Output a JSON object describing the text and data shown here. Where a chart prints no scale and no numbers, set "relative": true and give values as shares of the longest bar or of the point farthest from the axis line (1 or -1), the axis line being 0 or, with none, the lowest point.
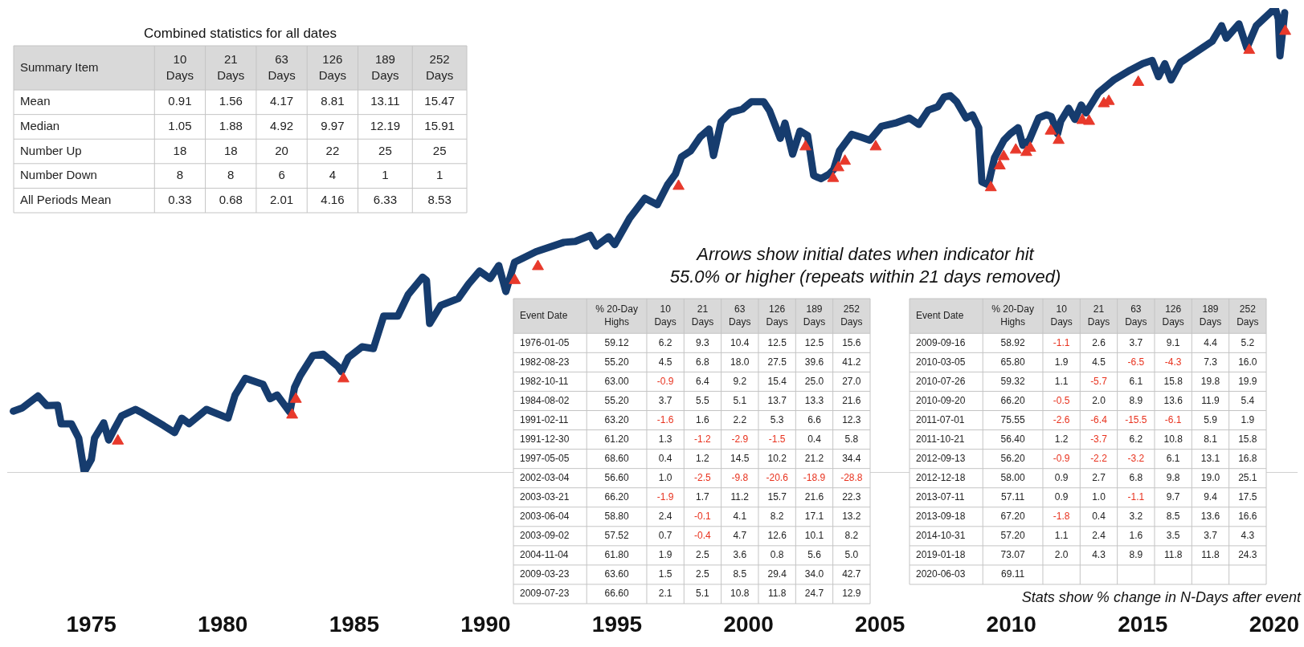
{
  "chart_data": [
    {
      "type": "line",
      "relative": true,
      "xlim": [
        1971.8,
        2020.86
      ],
      "xticks": [
        1975,
        1980,
        1985,
        1990,
        1995,
        2000,
        2005,
        2010,
        2015,
        2020
      ],
      "grid": false,
      "legend": false,
      "annotations": [
        "Arrows show initial dates when indicator hit 55.0% or higher (repeats within 21 days removed)",
        "Stats show % change in N-Days after event"
      ],
      "series": [
        {
          "type": "line",
          "color": "#163c6e",
          "marker": "none",
          "line_style": "solid",
          "x": [
            1972.03,
            1972.37,
            1972.97,
            1973.31,
            1973.72,
            1973.85,
            1974.24,
            1974.52,
            1974.73,
            1975.0,
            1975.12,
            1975.47,
            1975.66,
            1975.88,
            1976.15,
            1976.68,
            1976.95,
            1977.75,
            1978.17,
            1978.44,
            1978.72,
            1979.38,
            1980.2,
            1980.47,
            1980.86,
            1981.53,
            1981.8,
            1982.07,
            1982.55,
            1982.73,
            1982.95,
            1983.43,
            1983.82,
            1984.37,
            1984.52,
            1984.78,
            1985.3,
            1985.73,
            1986.12,
            1986.66,
            1987.05,
            1987.6,
            1987.75,
            1987.87,
            1988.29,
            1988.96,
            1989.35,
            1989.77,
            1990.17,
            1990.5,
            1990.77,
            1991.1,
            1991.92,
            1992.98,
            1993.41,
            1993.98,
            1994.21,
            1994.68,
            1994.91,
            1995.48,
            1996.06,
            1996.53,
            1996.92,
            1997.22,
            1997.45,
            1997.8,
            1998.16,
            1998.5,
            1998.67,
            1998.96,
            1999.31,
            1999.77,
            2000.11,
            2000.58,
            2000.8,
            2001.21,
            2001.39,
            2001.68,
            2001.96,
            2002.25,
            2002.48,
            2002.76,
            2003.07,
            2003.24,
            2003.46,
            2003.93,
            2004.27,
            2004.62,
            2005.06,
            2005.64,
            2006.12,
            2006.48,
            2006.84,
            2007.2,
            2007.44,
            2007.68,
            2007.92,
            2008.28,
            2008.52,
            2008.76,
            2008.88,
            2009.12,
            2009.36,
            2009.72,
            2009.96,
            2010.26,
            2010.44,
            2010.68,
            2011.04,
            2011.34,
            2011.52,
            2011.76,
            2011.88,
            2012.18,
            2012.42,
            2012.66,
            2012.84,
            2013.32,
            2013.92,
            2014.52,
            2015.0,
            2015.36,
            2015.6,
            2015.84,
            2016.08,
            2016.44,
            2016.92,
            2017.64,
            2018.0,
            2018.18,
            2018.66,
            2018.96,
            2019.32,
            2020.04,
            2020.16,
            2020.22,
            2020.4
          ],
          "values": [
            0.131,
            0.138,
            0.164,
            0.143,
            0.144,
            0.104,
            0.104,
            0.073,
            0,
            0.027,
            0.073,
            0.106,
            0.069,
            0.093,
            0.121,
            0.135,
            0.127,
            0.1,
            0.085,
            0.116,
            0.104,
            0.135,
            0.116,
            0.166,
            0.202,
            0.189,
            0.158,
            0.166,
            0.129,
            0.182,
            0.208,
            0.251,
            0.254,
            0.228,
            0.216,
            0.247,
            0.27,
            0.266,
            0.336,
            0.336,
            0.382,
            0.42,
            0.413,
            0.32,
            0.359,
            0.374,
            0.405,
            0.433,
            0.417,
            0.445,
            0.389,
            0.452,
            0.475,
            0.495,
            0.497,
            0.51,
            0.487,
            0.507,
            0.49,
            0.547,
            0.59,
            0.576,
            0.619,
            0.642,
            0.679,
            0.692,
            0.722,
            0.739,
            0.682,
            0.755,
            0.775,
            0.782,
            0.798,
            0.798,
            0.779,
            0.719,
            0.752,
            0.685,
            0.735,
            0.725,
            0.639,
            0.632,
            0.642,
            0.652,
            0.692,
            0.728,
            0.722,
            0.715,
            0.745,
            0.753,
            0.763,
            0.749,
            0.78,
            0.787,
            0.808,
            0.811,
            0.798,
            0.763,
            0.77,
            0.742,
            0.625,
            0.619,
            0.677,
            0.715,
            0.729,
            0.742,
            0.704,
            0.715,
            0.763,
            0.77,
            0.766,
            0.729,
            0.756,
            0.784,
            0.76,
            0.791,
            0.774,
            0.818,
            0.846,
            0.866,
            0.88,
            0.887,
            0.852,
            0.88,
            0.845,
            0.883,
            0.901,
            0.928,
            0.962,
            0.935,
            0.966,
            0.914,
            0.962,
            1.0,
            0.976,
            0.897,
            0.99
          ]
        },
        {
          "type": "scatter",
          "color": "#e8392b",
          "marker": "triangle",
          "x": [
            1976.01,
            1982.64,
            1982.78,
            1984.59,
            1991.11,
            1991.99,
            1997.34,
            2002.17,
            2003.22,
            2003.42,
            2003.67,
            2004.84,
            2009.22,
            2009.56,
            2009.71,
            2010.17,
            2010.57,
            2010.72,
            2011.5,
            2011.8,
            2012.7,
            2012.96,
            2013.52,
            2013.71,
            2014.83,
            2019.05,
            2020.42
          ],
          "values": [
            0.067,
            0.123,
            0.157,
            0.201,
            0.413,
            0.443,
            0.616,
            0.701,
            0.633,
            0.656,
            0.67,
            0.701,
            0.613,
            0.66,
            0.68,
            0.694,
            0.689,
            0.698,
            0.735,
            0.715,
            0.758,
            0.756,
            0.794,
            0.799,
            0.84,
            0.909,
            0.95
          ]
        }
      ]
    },
    {
      "type": "heatmap",
      "title": "Combined statistics for all dates",
      "ylabel": "Summary Item",
      "color": "#ffffff",
      "categories": [
        "10 Days",
        "21 Days",
        "63 Days",
        "126 Days",
        "189 Days",
        "252 Days"
      ],
      "y_categories": [
        "Mean",
        "Median",
        "Number Up",
        "Number Down",
        "All Periods Mean"
      ],
      "cells": [
        [
          0.91,
          1.56,
          4.17,
          8.81,
          13.11,
          15.47
        ],
        [
          1.05,
          1.88,
          4.92,
          9.97,
          12.19,
          15.91
        ],
        [
          18,
          18,
          20,
          22,
          25,
          25
        ],
        [
          8,
          8,
          6,
          4,
          1,
          1
        ],
        [
          0.33,
          0.68,
          2.01,
          4.16,
          6.33,
          8.53
        ]
      ],
      "cell_labels": [
        [
          "0.91",
          "1.56",
          "4.17",
          "8.81",
          "13.11",
          "15.47"
        ],
        [
          "1.05",
          "1.88",
          "4.92",
          "9.97",
          "12.19",
          "15.91"
        ],
        [
          "18",
          "18",
          "20",
          "22",
          "25",
          "25"
        ],
        [
          "8",
          "8",
          "6",
          "4",
          "1",
          "1"
        ],
        [
          "0.33",
          "0.68",
          "2.01",
          "4.16",
          "6.33",
          "8.53"
        ]
      ]
    },
    {
      "type": "heatmap",
      "ylabel": "Event Date",
      "color": "#ffffff",
      "categories": [
        "% 20-Day Highs",
        "10 Days",
        "21 Days",
        "63 Days",
        "126 Days",
        "189 Days",
        "252 Days"
      ],
      "y_categories": [
        "1976-01-05",
        "1982-08-23",
        "1982-10-11",
        "1984-08-02",
        "1991-02-11",
        "1991-12-30",
        "1997-05-05",
        "2002-03-04",
        "2003-03-21",
        "2003-06-04",
        "2003-09-02",
        "2004-11-04",
        "2009-03-23",
        "2009-07-23"
      ],
      "cells": [
        [
          59.12,
          6.2,
          9.3,
          10.4,
          12.5,
          12.5,
          15.6
        ],
        [
          55.2,
          4.5,
          6.8,
          18.0,
          27.5,
          39.6,
          41.2
        ],
        [
          63.0,
          -0.9,
          6.4,
          9.2,
          15.4,
          25.0,
          27.0
        ],
        [
          55.2,
          3.7,
          5.5,
          5.1,
          13.7,
          13.3,
          21.6
        ],
        [
          63.2,
          -1.6,
          1.6,
          2.2,
          5.3,
          6.6,
          12.3
        ],
        [
          61.2,
          1.3,
          -1.2,
          -2.9,
          -1.5,
          0.4,
          5.8
        ],
        [
          68.6,
          0.4,
          1.2,
          14.5,
          10.2,
          21.2,
          34.4
        ],
        [
          56.6,
          1.0,
          -2.5,
          -9.8,
          -20.6,
          -18.9,
          -28.8
        ],
        [
          66.2,
          -1.9,
          1.7,
          11.2,
          15.7,
          21.6,
          22.3
        ],
        [
          58.8,
          2.4,
          -0.1,
          4.1,
          8.2,
          17.1,
          13.2
        ],
        [
          57.52,
          0.7,
          -0.4,
          4.7,
          12.6,
          10.1,
          8.2
        ],
        [
          61.8,
          1.9,
          2.5,
          3.6,
          0.8,
          5.6,
          5.0
        ],
        [
          63.6,
          1.5,
          2.5,
          8.5,
          29.4,
          34.0,
          42.7
        ],
        [
          66.6,
          2.1,
          5.1,
          10.8,
          11.8,
          24.7,
          12.9
        ]
      ],
      "cell_labels": [
        [
          "59.12",
          "6.2",
          "9.3",
          "10.4",
          "12.5",
          "12.5",
          "15.6"
        ],
        [
          "55.20",
          "4.5",
          "6.8",
          "18.0",
          "27.5",
          "39.6",
          "41.2"
        ],
        [
          "63.00",
          "-0.9",
          "6.4",
          "9.2",
          "15.4",
          "25.0",
          "27.0"
        ],
        [
          "55.20",
          "3.7",
          "5.5",
          "5.1",
          "13.7",
          "13.3",
          "21.6"
        ],
        [
          "63.20",
          "-1.6",
          "1.6",
          "2.2",
          "5.3",
          "6.6",
          "12.3"
        ],
        [
          "61.20",
          "1.3",
          "-1.2",
          "-2.9",
          "-1.5",
          "0.4",
          "5.8"
        ],
        [
          "68.60",
          "0.4",
          "1.2",
          "14.5",
          "10.2",
          "21.2",
          "34.4"
        ],
        [
          "56.60",
          "1.0",
          "-2.5",
          "-9.8",
          "-20.6",
          "-18.9",
          "-28.8"
        ],
        [
          "66.20",
          "-1.9",
          "1.7",
          "11.2",
          "15.7",
          "21.6",
          "22.3"
        ],
        [
          "58.80",
          "2.4",
          "-0.1",
          "4.1",
          "8.2",
          "17.1",
          "13.2"
        ],
        [
          "57.52",
          "0.7",
          "-0.4",
          "4.7",
          "12.6",
          "10.1",
          "8.2"
        ],
        [
          "61.80",
          "1.9",
          "2.5",
          "3.6",
          "0.8",
          "5.6",
          "5.0"
        ],
        [
          "63.60",
          "1.5",
          "2.5",
          "8.5",
          "29.4",
          "34.0",
          "42.7"
        ],
        [
          "66.60",
          "2.1",
          "5.1",
          "10.8",
          "11.8",
          "24.7",
          "12.9"
        ]
      ]
    },
    {
      "type": "heatmap",
      "ylabel": "Event Date",
      "color": "#ffffff",
      "categories": [
        "% 20-Day Highs",
        "10 Days",
        "21 Days",
        "63 Days",
        "126 Days",
        "189 Days",
        "252 Days"
      ],
      "y_categories": [
        "2009-09-16",
        "2010-03-05",
        "2010-07-26",
        "2010-09-20",
        "2011-07-01",
        "2011-10-21",
        "2012-09-13",
        "2012-12-18",
        "2013-07-11",
        "2013-09-18",
        "2014-10-31",
        "2019-01-18",
        "2020-06-03"
      ],
      "cells": [
        [
          58.92,
          -1.1,
          2.6,
          3.7,
          9.1,
          4.4,
          5.2
        ],
        [
          65.8,
          1.9,
          4.5,
          -6.5,
          -4.3,
          7.3,
          16.0
        ],
        [
          59.32,
          1.1,
          -5.7,
          6.1,
          15.8,
          19.8,
          19.9
        ],
        [
          66.2,
          -0.5,
          2.0,
          8.9,
          13.6,
          11.9,
          5.4
        ],
        [
          75.55,
          -2.6,
          -6.4,
          -15.5,
          -6.1,
          5.9,
          1.9
        ],
        [
          56.4,
          1.2,
          -3.7,
          6.2,
          10.8,
          8.1,
          15.8
        ],
        [
          56.2,
          -0.9,
          -2.2,
          -3.2,
          6.1,
          13.1,
          16.8
        ],
        [
          58.0,
          0.9,
          2.7,
          6.8,
          9.8,
          19.0,
          25.1
        ],
        [
          57.11,
          0.9,
          1.0,
          -1.1,
          9.7,
          9.4,
          17.5
        ],
        [
          67.2,
          -1.8,
          0.4,
          3.2,
          8.5,
          13.6,
          16.6
        ],
        [
          57.2,
          1.1,
          2.4,
          1.6,
          3.5,
          3.7,
          4.3
        ],
        [
          73.07,
          2.0,
          4.3,
          8.9,
          11.8,
          11.8,
          24.3
        ],
        [
          69.11,
          null,
          null,
          null,
          null,
          null,
          null
        ]
      ],
      "cell_labels": [
        [
          "58.92",
          "-1.1",
          "2.6",
          "3.7",
          "9.1",
          "4.4",
          "5.2"
        ],
        [
          "65.80",
          "1.9",
          "4.5",
          "-6.5",
          "-4.3",
          "7.3",
          "16.0"
        ],
        [
          "59.32",
          "1.1",
          "-5.7",
          "6.1",
          "15.8",
          "19.8",
          "19.9"
        ],
        [
          "66.20",
          "-0.5",
          "2.0",
          "8.9",
          "13.6",
          "11.9",
          "5.4"
        ],
        [
          "75.55",
          "-2.6",
          "-6.4",
          "-15.5",
          "-6.1",
          "5.9",
          "1.9"
        ],
        [
          "56.40",
          "1.2",
          "-3.7",
          "6.2",
          "10.8",
          "8.1",
          "15.8"
        ],
        [
          "56.20",
          "-0.9",
          "-2.2",
          "-3.2",
          "6.1",
          "13.1",
          "16.8"
        ],
        [
          "58.00",
          "0.9",
          "2.7",
          "6.8",
          "9.8",
          "19.0",
          "25.1"
        ],
        [
          "57.11",
          "0.9",
          "1.0",
          "-1.1",
          "9.7",
          "9.4",
          "17.5"
        ],
        [
          "67.20",
          "-1.8",
          "0.4",
          "3.2",
          "8.5",
          "13.6",
          "16.6"
        ],
        [
          "57.20",
          "1.1",
          "2.4",
          "1.6",
          "3.5",
          "3.7",
          "4.3"
        ],
        [
          "73.07",
          "2.0",
          "4.3",
          "8.9",
          "11.8",
          "11.8",
          "24.3"
        ],
        [
          "69.11",
          null,
          null,
          null,
          null,
          null,
          null
        ]
      ]
    }
  ]
}
